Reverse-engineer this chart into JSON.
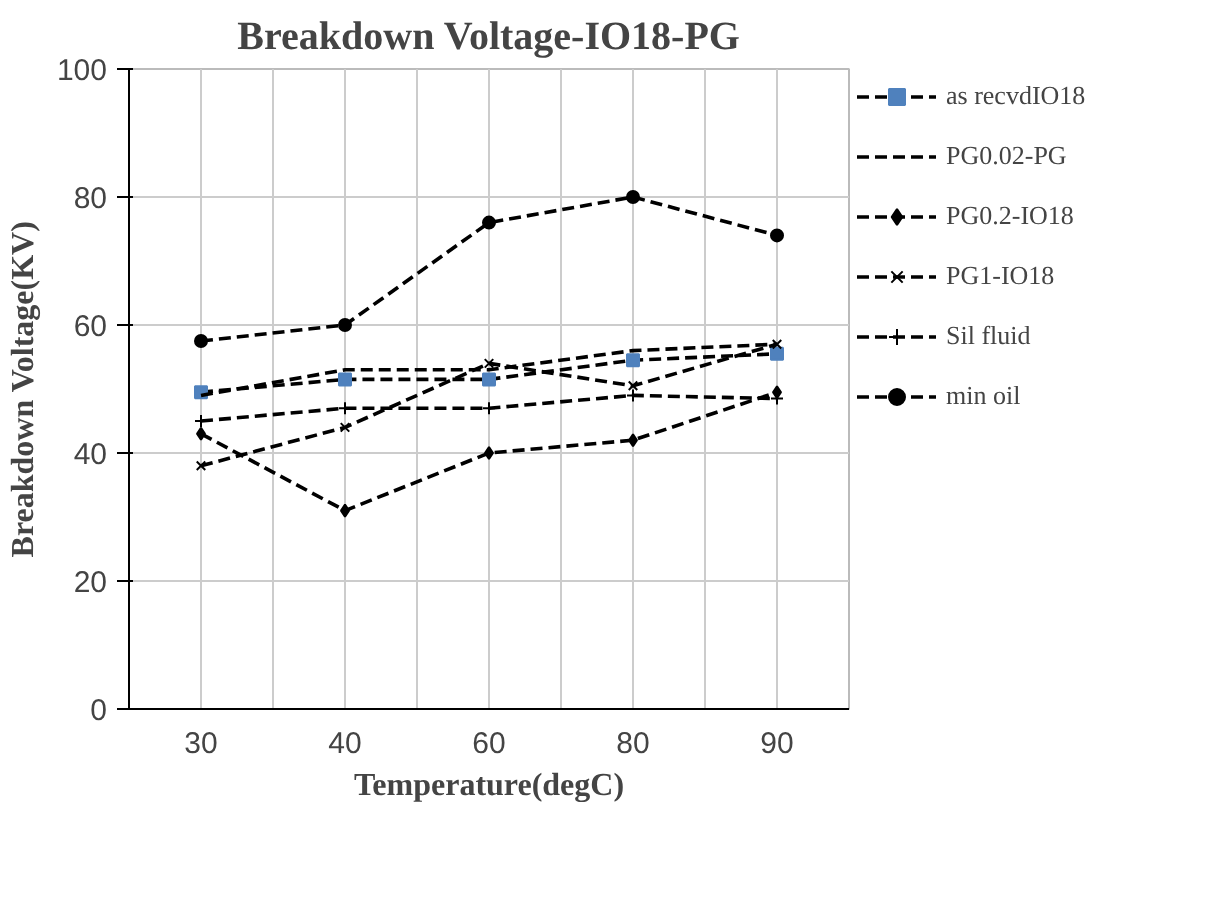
{
  "chart_data": {
    "type": "line",
    "title": "Breakdown Voltage-IO18-PG",
    "xlabel": "Temperature(degC)",
    "ylabel": "Breakdown Voltage(KV)",
    "categories": [
      "30",
      "40",
      "60",
      "80",
      "90"
    ],
    "series": [
      {
        "name": "as recvdIO18",
        "color": "#4f81bd",
        "marker": "square",
        "values": [
          49.5,
          51.5,
          51.5,
          54.5,
          55.5
        ]
      },
      {
        "name": "PG0.02-PG",
        "color": "#000000",
        "marker": "none",
        "values": [
          49,
          53,
          53,
          56,
          57
        ]
      },
      {
        "name": "PG0.2-IO18",
        "color": "#000000",
        "marker": "diamond",
        "values": [
          43,
          31,
          40,
          42,
          49.5
        ]
      },
      {
        "name": "PG1-IO18",
        "color": "#000000",
        "marker": "x",
        "values": [
          38,
          44,
          54,
          50.5,
          57
        ]
      },
      {
        "name": "Sil fluid",
        "color": "#000000",
        "marker": "cross",
        "values": [
          45,
          47,
          47,
          49,
          48.5
        ]
      },
      {
        "name": "min oil",
        "color": "#000000",
        "marker": "circle",
        "values": [
          57.5,
          60,
          76,
          80,
          74
        ]
      }
    ],
    "ylim": [
      0,
      100
    ],
    "yticks": [
      0,
      20,
      40,
      60,
      80,
      100
    ],
    "grid": true,
    "legend": "right",
    "line_style": "dashed"
  }
}
